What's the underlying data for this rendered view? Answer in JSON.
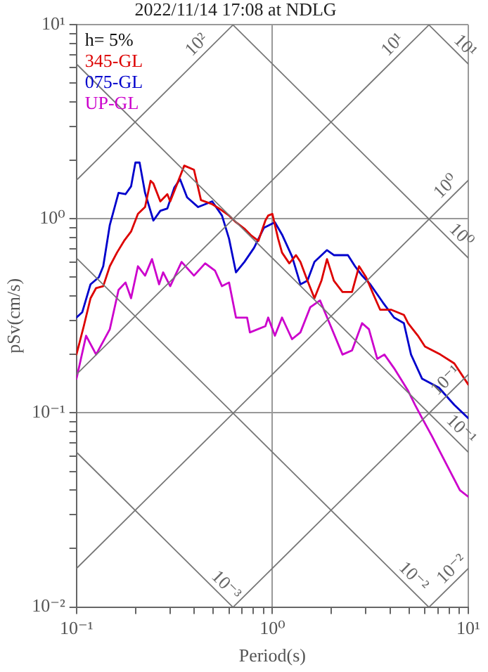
{
  "chart_data": {
    "type": "line",
    "title": "2022/11/14 17:08 at NDLG",
    "xlabel": "Period(s)",
    "ylabel": "pSv(cm/s)",
    "log": "xy",
    "grid": true,
    "legend": "top left",
    "marker": "none",
    "line_style": "solid",
    "xlim": [
      0.1,
      10
    ],
    "ylim": [
      0.01,
      10
    ],
    "xticks": [
      {
        "value": 0.1,
        "label": "10⁻¹"
      },
      {
        "value": 0.2,
        "label": null
      },
      {
        "value": 0.3,
        "label": null
      },
      {
        "value": 0.4,
        "label": null
      },
      {
        "value": 0.5,
        "label": null
      },
      {
        "value": 0.6,
        "label": null
      },
      {
        "value": 0.7,
        "label": null
      },
      {
        "value": 0.8,
        "label": null
      },
      {
        "value": 0.9,
        "label": null
      },
      {
        "value": 1,
        "label": "10⁰"
      },
      {
        "value": 2,
        "label": null
      },
      {
        "value": 3,
        "label": null
      },
      {
        "value": 4,
        "label": null
      },
      {
        "value": 5,
        "label": null
      },
      {
        "value": 6,
        "label": null
      },
      {
        "value": 7,
        "label": null
      },
      {
        "value": 8,
        "label": null
      },
      {
        "value": 9,
        "label": null
      },
      {
        "value": 10,
        "label": "10¹"
      }
    ],
    "yticks": [
      {
        "value": 0.01,
        "label": "10⁻²"
      },
      {
        "value": 0.02,
        "label": null
      },
      {
        "value": 0.03,
        "label": null
      },
      {
        "value": 0.04,
        "label": null
      },
      {
        "value": 0.05,
        "label": null
      },
      {
        "value": 0.06,
        "label": null
      },
      {
        "value": 0.07,
        "label": null
      },
      {
        "value": 0.08,
        "label": null
      },
      {
        "value": 0.09,
        "label": null
      },
      {
        "value": 0.1,
        "label": "10⁻¹"
      },
      {
        "value": 0.2,
        "label": null
      },
      {
        "value": 0.3,
        "label": null
      },
      {
        "value": 0.4,
        "label": null
      },
      {
        "value": 0.5,
        "label": null
      },
      {
        "value": 0.6,
        "label": null
      },
      {
        "value": 0.7,
        "label": null
      },
      {
        "value": 0.8,
        "label": null
      },
      {
        "value": 0.9,
        "label": null
      },
      {
        "value": 1,
        "label": "10⁰"
      },
      {
        "value": 2,
        "label": null
      },
      {
        "value": 3,
        "label": null
      },
      {
        "value": 4,
        "label": null
      },
      {
        "value": 5,
        "label": null
      },
      {
        "value": 6,
        "label": null
      },
      {
        "value": 7,
        "label": null
      },
      {
        "value": 8,
        "label": null
      },
      {
        "value": 9,
        "label": null
      },
      {
        "value": 10,
        "label": "10¹"
      }
    ],
    "series": [
      {
        "type": "line",
        "color": "#777777",
        "x": [
          0.1,
          0.631
        ],
        "values": [
          1.58,
          10
        ]
      },
      {
        "type": "line",
        "color": "#777777",
        "x": [
          0.1,
          6.31
        ],
        "values": [
          0.158,
          10
        ]
      },
      {
        "type": "line",
        "color": "#777777",
        "x": [
          0.1,
          10
        ],
        "values": [
          0.0158,
          1.58
        ]
      },
      {
        "type": "line",
        "color": "#777777",
        "x": [
          0.631,
          10
        ],
        "values": [
          0.01,
          0.158
        ]
      },
      {
        "type": "line",
        "color": "#777777",
        "x": [
          6.31,
          10
        ],
        "values": [
          0.01,
          0.0158
        ]
      },
      {
        "type": "line",
        "color": "#777777",
        "x": [
          6.28,
          10
        ],
        "values": [
          10,
          6.28
        ]
      },
      {
        "type": "line",
        "color": "#777777",
        "x": [
          0.628,
          10
        ],
        "values": [
          10,
          0.628
        ]
      },
      {
        "type": "line",
        "color": "#777777",
        "x": [
          0.1,
          10
        ],
        "values": [
          6.28,
          0.0628
        ]
      },
      {
        "type": "line",
        "color": "#777777",
        "x": [
          0.1,
          6.28
        ],
        "values": [
          0.628,
          0.01
        ]
      },
      {
        "type": "line",
        "color": "#777777",
        "x": [
          0.1,
          0.628
        ],
        "values": [
          0.0628,
          0.01
        ]
      },
      {
        "name": "345-GL",
        "color": "#dd0000",
        "x": [
          0.1,
          0.109,
          0.118,
          0.126,
          0.137,
          0.148,
          0.161,
          0.175,
          0.19,
          0.206,
          0.224,
          0.239,
          0.247,
          0.268,
          0.291,
          0.301,
          0.327,
          0.355,
          0.398,
          0.432,
          0.493,
          0.535,
          0.601,
          0.652,
          0.72,
          0.781,
          0.848,
          0.921,
          0.952,
          1.0,
          1.07,
          1.12,
          1.22,
          1.32,
          1.39,
          1.51,
          1.64,
          1.78,
          1.9,
          2.06,
          2.28,
          2.55,
          2.77,
          3.01,
          3.27,
          3.55,
          4.05,
          4.69,
          4.93,
          5.53,
          6.01,
          7.2,
          8.48,
          10
        ],
        "values": [
          0.2,
          0.28,
          0.39,
          0.44,
          0.45,
          0.57,
          0.67,
          0.77,
          0.86,
          1.06,
          1.15,
          1.57,
          1.52,
          1.23,
          1.34,
          1.23,
          1.52,
          1.88,
          1.79,
          1.25,
          1.19,
          1.13,
          1.04,
          0.96,
          0.89,
          0.82,
          0.77,
          0.98,
          1.04,
          1.06,
          0.79,
          0.67,
          0.59,
          0.65,
          0.6,
          0.48,
          0.39,
          0.48,
          0.62,
          0.48,
          0.42,
          0.42,
          0.57,
          0.5,
          0.41,
          0.34,
          0.34,
          0.32,
          0.29,
          0.25,
          0.22,
          0.2,
          0.18,
          0.14
        ]
      },
      {
        "name": "075-GL",
        "color": "#0000cc",
        "x": [
          0.1,
          0.107,
          0.118,
          0.13,
          0.137,
          0.148,
          0.164,
          0.178,
          0.19,
          0.2,
          0.21,
          0.224,
          0.247,
          0.268,
          0.291,
          0.316,
          0.338,
          0.367,
          0.418,
          0.493,
          0.553,
          0.601,
          0.652,
          0.72,
          0.807,
          0.906,
          1.03,
          1.12,
          1.26,
          1.39,
          1.51,
          1.64,
          1.9,
          2.06,
          2.43,
          2.64,
          2.87,
          3.16,
          3.67,
          4.18,
          4.69,
          5.1,
          5.81,
          7.08,
          8.48,
          10
        ],
        "values": [
          0.31,
          0.33,
          0.46,
          0.5,
          0.57,
          0.93,
          1.36,
          1.34,
          1.47,
          1.95,
          1.95,
          1.36,
          0.98,
          1.1,
          1.13,
          1.45,
          1.6,
          1.29,
          1.15,
          1.23,
          1.04,
          0.79,
          0.53,
          0.6,
          0.71,
          0.9,
          0.96,
          0.83,
          0.64,
          0.46,
          0.48,
          0.6,
          0.69,
          0.65,
          0.65,
          0.57,
          0.51,
          0.46,
          0.37,
          0.31,
          0.29,
          0.2,
          0.15,
          0.135,
          0.11,
          0.094
        ]
      },
      {
        "name": "UP-GL",
        "color": "#cc00cc",
        "x": [
          0.1,
          0.112,
          0.126,
          0.148,
          0.164,
          0.178,
          0.19,
          0.206,
          0.224,
          0.243,
          0.264,
          0.277,
          0.301,
          0.344,
          0.398,
          0.454,
          0.51,
          0.553,
          0.601,
          0.652,
          0.743,
          0.768,
          0.921,
          0.952,
          1.03,
          1.12,
          1.26,
          1.39,
          1.56,
          1.75,
          1.93,
          2.28,
          2.55,
          2.87,
          3.11,
          3.43,
          3.73,
          4.18,
          4.93,
          5.35,
          5.81,
          6.52,
          7.69,
          9.06,
          10
        ],
        "values": [
          0.15,
          0.25,
          0.2,
          0.27,
          0.43,
          0.47,
          0.39,
          0.57,
          0.51,
          0.62,
          0.46,
          0.53,
          0.45,
          0.6,
          0.51,
          0.59,
          0.54,
          0.45,
          0.47,
          0.31,
          0.31,
          0.26,
          0.28,
          0.31,
          0.25,
          0.31,
          0.24,
          0.26,
          0.35,
          0.38,
          0.3,
          0.2,
          0.21,
          0.29,
          0.27,
          0.19,
          0.2,
          0.17,
          0.13,
          0.11,
          0.094,
          0.076,
          0.055,
          0.04,
          0.037
        ]
      }
    ],
    "annotations": [
      "h= 5%",
      {
        "text": "10²",
        "x": 0.45,
        "y": 7.2
      },
      {
        "text": "10¹",
        "x": 4.5,
        "y": 7.2
      },
      {
        "text": "10¹",
        "x": 8.8,
        "y": 7.1
      },
      {
        "text": "10⁰",
        "x": 8.4,
        "y": 1.34
      },
      {
        "text": "10⁰",
        "x": 8.4,
        "y": 0.75
      },
      {
        "text": "10⁻¹",
        "x": 8.4,
        "y": 0.134
      },
      {
        "text": "10⁻¹",
        "x": 8.4,
        "y": 0.075
      },
      {
        "text": "10⁻³",
        "x": 0.53,
        "y": 0.0118
      },
      {
        "text": "10⁻²",
        "x": 4.8,
        "y": 0.0131
      },
      {
        "text": "10⁻²",
        "x": 9.0,
        "y": 0.0143
      }
    ]
  }
}
